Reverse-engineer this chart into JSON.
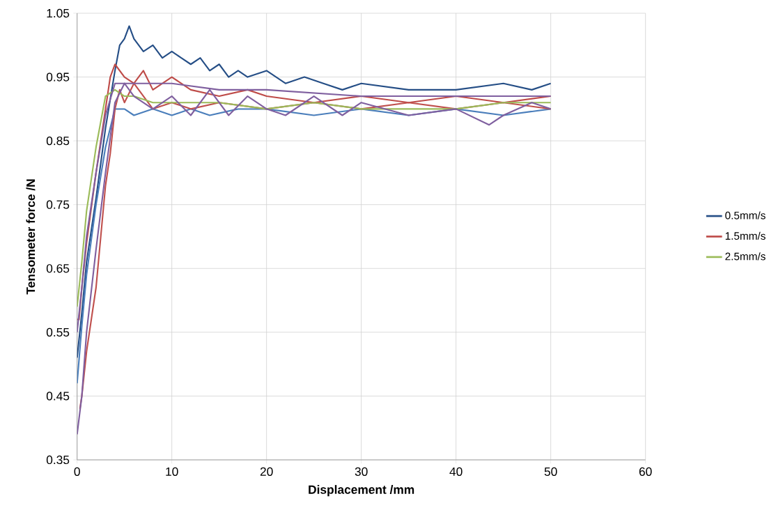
{
  "chart_data": {
    "type": "line",
    "xlabel": "Displacement /mm",
    "ylabel": "Tensometer force /N",
    "xlim": [
      0,
      60
    ],
    "xticks": [
      0,
      10,
      20,
      30,
      40,
      50,
      60
    ],
    "ylim": [
      0.35,
      1.05
    ],
    "yticks": [
      0.35,
      0.45,
      0.55,
      0.65,
      0.75,
      0.85,
      0.95,
      1.05
    ],
    "grid": true,
    "legend": "right",
    "series": [
      {
        "name": "0.5mm/s",
        "color": "#254e86",
        "x": [
          0,
          0.5,
          1,
          2,
          3,
          4,
          4.5,
          5,
          5.5,
          6,
          6.5,
          7,
          8,
          9,
          10,
          11,
          12,
          13,
          14,
          15,
          16,
          17,
          18,
          20,
          22,
          24,
          26,
          28,
          30,
          35,
          40,
          45,
          48,
          50
        ],
        "values": [
          0.51,
          0.58,
          0.66,
          0.76,
          0.87,
          0.96,
          1.0,
          1.01,
          1.03,
          1.01,
          1.0,
          0.99,
          1.0,
          0.98,
          0.99,
          0.98,
          0.97,
          0.98,
          0.96,
          0.97,
          0.95,
          0.96,
          0.95,
          0.96,
          0.94,
          0.95,
          0.94,
          0.93,
          0.94,
          0.93,
          0.93,
          0.94,
          0.93,
          0.94
        ]
      },
      {
        "color": "#4a7ebb",
        "x": [
          0,
          0.5,
          1,
          2,
          3,
          4,
          5,
          6,
          8,
          10,
          12,
          14,
          17,
          20,
          25,
          30,
          35,
          40,
          45,
          50
        ],
        "values": [
          0.47,
          0.56,
          0.64,
          0.75,
          0.84,
          0.9,
          0.9,
          0.89,
          0.9,
          0.89,
          0.9,
          0.89,
          0.9,
          0.9,
          0.89,
          0.9,
          0.89,
          0.9,
          0.89,
          0.9
        ]
      },
      {
        "name": "1.5mm/s",
        "color": "#be4b48",
        "x": [
          0,
          0.2,
          0.5,
          1,
          2,
          3,
          3.5,
          4,
          5,
          6,
          7,
          8,
          10,
          12,
          15,
          18,
          20,
          25,
          30,
          35,
          40,
          45,
          50
        ],
        "values": [
          0.57,
          0.57,
          0.62,
          0.69,
          0.8,
          0.9,
          0.95,
          0.97,
          0.95,
          0.94,
          0.96,
          0.93,
          0.95,
          0.93,
          0.92,
          0.93,
          0.92,
          0.91,
          0.92,
          0.91,
          0.92,
          0.91,
          0.92
        ]
      },
      {
        "color": "#c0504d",
        "x": [
          0.3,
          0.5,
          1,
          1.5,
          2,
          2.5,
          3,
          3.5,
          4,
          4.5,
          5,
          6,
          8,
          10,
          12,
          15,
          20,
          25,
          30,
          35,
          40,
          45,
          50
        ],
        "values": [
          0.43,
          0.45,
          0.52,
          0.57,
          0.62,
          0.7,
          0.78,
          0.83,
          0.9,
          0.93,
          0.91,
          0.94,
          0.9,
          0.91,
          0.9,
          0.91,
          0.9,
          0.91,
          0.9,
          0.91,
          0.9,
          0.91,
          0.9
        ]
      },
      {
        "name": "2.5mm/s",
        "color": "#9bbb59",
        "x": [
          0,
          0.5,
          1,
          2,
          3,
          4,
          5,
          6,
          8,
          10,
          15,
          20,
          25,
          30,
          35,
          40,
          45,
          50
        ],
        "values": [
          0.59,
          0.66,
          0.74,
          0.84,
          0.92,
          0.93,
          0.92,
          0.92,
          0.91,
          0.91,
          0.91,
          0.9,
          0.91,
          0.9,
          0.9,
          0.9,
          0.91,
          0.91
        ]
      },
      {
        "color": "#7f5f9f",
        "x": [
          0,
          0.5,
          1,
          2,
          3,
          4,
          5,
          6,
          8,
          10,
          12,
          14,
          16,
          18,
          20,
          22,
          25,
          28,
          30,
          35,
          40,
          43.5,
          45,
          48,
          50
        ],
        "values": [
          0.39,
          0.45,
          0.55,
          0.68,
          0.8,
          0.91,
          0.94,
          0.92,
          0.9,
          0.92,
          0.89,
          0.93,
          0.89,
          0.92,
          0.9,
          0.89,
          0.92,
          0.89,
          0.91,
          0.89,
          0.9,
          0.875,
          0.89,
          0.91,
          0.9
        ]
      },
      {
        "color": "#7f5f9f",
        "x": [
          0,
          0.5,
          1,
          2,
          3,
          4,
          6,
          10,
          15,
          20,
          30,
          40,
          50
        ],
        "values": [
          0.55,
          0.62,
          0.7,
          0.8,
          0.89,
          0.94,
          0.94,
          0.94,
          0.93,
          0.93,
          0.92,
          0.92,
          0.92
        ]
      }
    ]
  }
}
